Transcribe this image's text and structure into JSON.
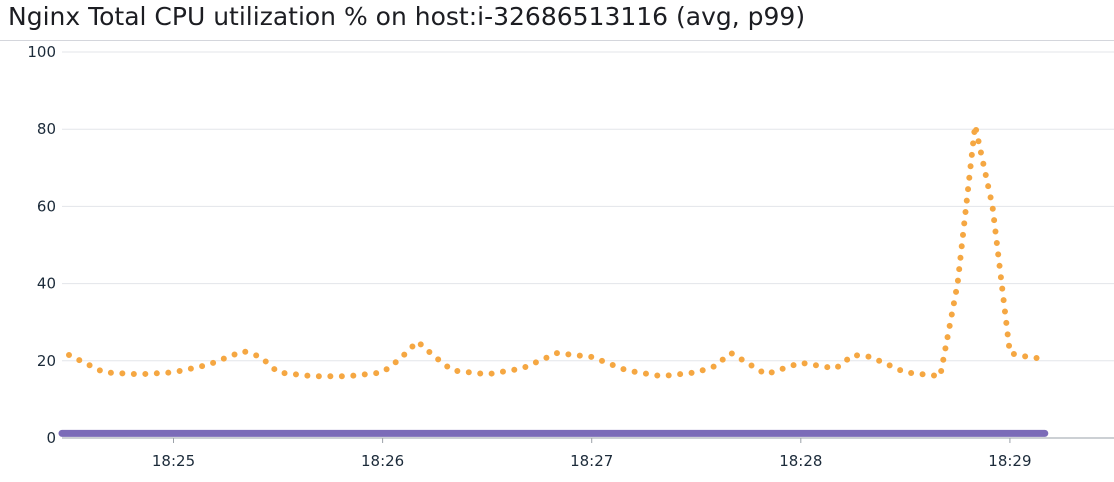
{
  "title": "Nginx Total CPU utilization % on host:i-32686513116 (avg, p99)",
  "colors": {
    "series_avg": "#f5a742",
    "series_p99": "#7b6bb8",
    "grid": "#e3e5ea",
    "axis": "#9aa0a8",
    "tick_text": "#1c2b3a"
  },
  "chart_data": {
    "type": "line",
    "title": "Nginx Total CPU utilization % on host:i-32686513116 (avg, p99)",
    "xlabel": "",
    "ylabel": "",
    "ylim": [
      0,
      100
    ],
    "xlim": [
      "18:24:28",
      "18:29:27"
    ],
    "yticks": [
      "0",
      "20",
      "40",
      "60",
      "80",
      "100"
    ],
    "xticks": [
      "18:25",
      "18:26",
      "18:27",
      "18:28",
      "18:29"
    ],
    "grid": true,
    "legend": "none",
    "series": [
      {
        "style": "dotted",
        "color": "#f5a742",
        "x": [
          "18:24:30",
          "18:24:40",
          "18:24:50",
          "18:25:00",
          "18:25:10",
          "18:25:20",
          "18:25:25",
          "18:25:30",
          "18:25:40",
          "18:25:50",
          "18:26:00",
          "18:26:05",
          "18:26:10",
          "18:26:15",
          "18:26:20",
          "18:26:30",
          "18:26:40",
          "18:26:50",
          "18:26:55",
          "18:27:00",
          "18:27:10",
          "18:27:20",
          "18:27:30",
          "18:27:35",
          "18:27:40",
          "18:27:50",
          "18:28:00",
          "18:28:10",
          "18:28:15",
          "18:28:20",
          "18:28:30",
          "18:28:40",
          "18:28:45",
          "18:28:50",
          "18:28:55",
          "18:29:00",
          "18:29:05",
          "18:29:10"
        ],
        "y": [
          21.5,
          17,
          16.5,
          17,
          19,
          22.5,
          21,
          17,
          16,
          16,
          17,
          20.5,
          25,
          21,
          17.5,
          16.5,
          18,
          22,
          21.5,
          21,
          17.5,
          16,
          17,
          18.5,
          22,
          16.5,
          19.5,
          18,
          21.5,
          21,
          17,
          16,
          40,
          81,
          60,
          22,
          21,
          20.5
        ]
      },
      {
        "style": "solid",
        "color": "#7b6bb8",
        "x": [
          "18:24:28",
          "18:29:10"
        ],
        "y": [
          1.2,
          1.2
        ]
      }
    ]
  }
}
